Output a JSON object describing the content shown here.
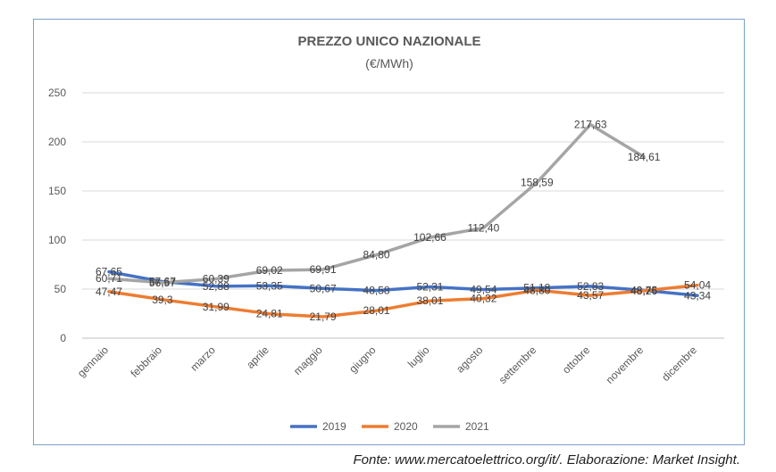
{
  "chart_data": {
    "type": "line",
    "title": "PREZZO UNICO NAZIONALE",
    "subtitle": "(€/MWh)",
    "categories": [
      "gennaio",
      "febbraio",
      "marzo",
      "aprile",
      "maggio",
      "giugno",
      "luglio",
      "agosto",
      "settembre",
      "ottobre",
      "novembre",
      "dicembre"
    ],
    "ylim": [
      0,
      250
    ],
    "yticks": [
      0,
      50,
      100,
      150,
      200,
      250
    ],
    "grid": true,
    "legend": "bottom",
    "series": [
      {
        "name": "2019",
        "color": "#4472c4",
        "values": [
          67.65,
          57.67,
          52.88,
          53.35,
          50.67,
          48.58,
          52.31,
          49.54,
          51.18,
          52.83,
          48.75,
          43.34
        ],
        "labels": [
          "67,65",
          "57,67",
          "52,88",
          "53,35",
          "50,67",
          "48,58",
          "52,31",
          "49,54",
          "51,18",
          "52,83",
          "48,75",
          "43,34"
        ]
      },
      {
        "name": "2020",
        "color": "#ed7d31",
        "values": [
          47.47,
          39.3,
          31.99,
          24.81,
          21.79,
          28.01,
          38.01,
          40.32,
          48.8,
          43.57,
          48.26,
          54.04
        ],
        "labels": [
          "47,47",
          "39,3",
          "31,99",
          "24,81",
          "21,79",
          "28,01",
          "38,01",
          "40,32",
          "48,80",
          "43,57",
          "48,26",
          "54,04"
        ]
      },
      {
        "name": "2021",
        "color": "#a5a5a5",
        "values": [
          60.71,
          56.57,
          60.39,
          69.02,
          69.91,
          84.8,
          102.66,
          112.4,
          158.59,
          217.63,
          184.61,
          null
        ],
        "labels": [
          "60,71",
          "56,57",
          "60,39",
          "69,02",
          "69,91",
          "84,80",
          "102,66",
          "112,40",
          "158,59",
          "217,63",
          "184,61",
          null
        ]
      }
    ]
  },
  "source_note": "Fonte: www.mercatoelettrico.org/it/. Elaborazione: Market Insight."
}
